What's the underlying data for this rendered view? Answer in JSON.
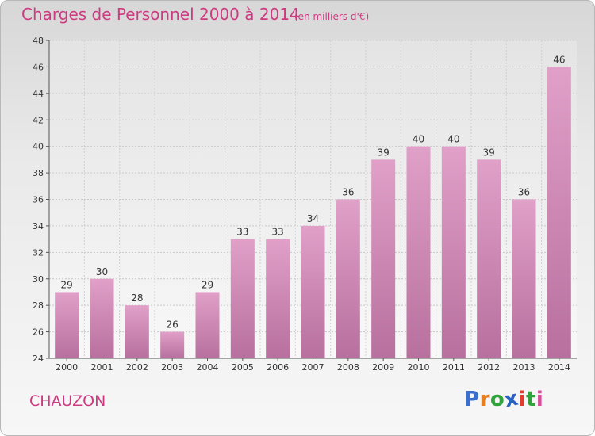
{
  "header": {
    "title": "Charges de Personnel 2000 à 2014",
    "subtitle": "(en milliers d'€)"
  },
  "footer": {
    "town": "CHAUZON",
    "logo_letters": [
      "P",
      "r",
      "o",
      "x",
      "i",
      "t",
      "i"
    ],
    "logo_colors": [
      "#3a6fd0",
      "#e57f1f",
      "#2ea43a",
      "#2a62c4",
      "#e33b2c",
      "#2ea43a",
      "#d94c9a"
    ]
  },
  "chart_data": {
    "type": "bar",
    "title": "Charges de Personnel 2000 à 2014",
    "subtitle": "(en milliers d'€)",
    "categories": [
      "2000",
      "2001",
      "2002",
      "2003",
      "2004",
      "2005",
      "2006",
      "2007",
      "2008",
      "2009",
      "2010",
      "2011",
      "2012",
      "2013",
      "2014"
    ],
    "values": [
      29,
      30,
      28,
      26,
      29,
      33,
      33,
      34,
      36,
      39,
      40,
      40,
      39,
      36,
      46
    ],
    "ylim": [
      24,
      48
    ],
    "yticks": [
      24,
      26,
      28,
      30,
      32,
      34,
      36,
      38,
      40,
      42,
      44,
      46,
      48
    ],
    "grid": true,
    "bar_color": "#e0a0c8",
    "bar_color_dark": "#b8709e"
  }
}
